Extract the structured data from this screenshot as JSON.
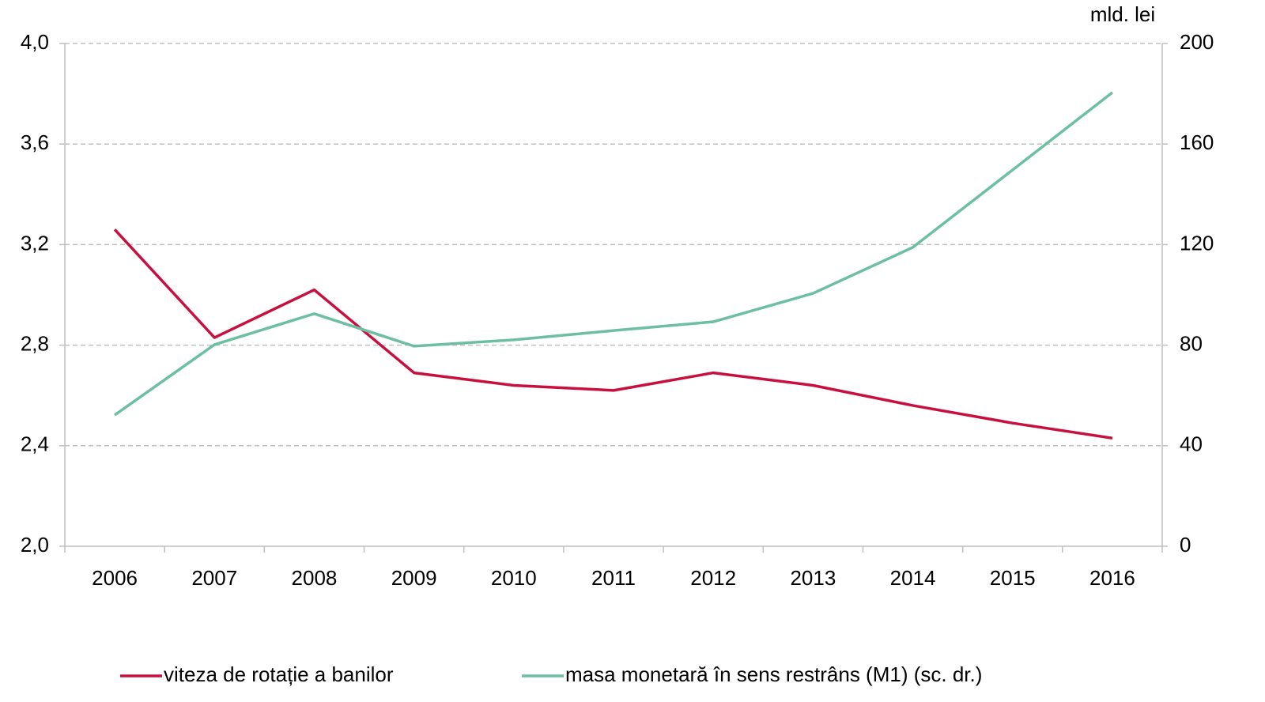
{
  "chart_data": {
    "type": "line",
    "y2label": "mld. lei",
    "categories": [
      "2006",
      "2007",
      "2008",
      "2009",
      "2010",
      "2011",
      "2012",
      "2013",
      "2014",
      "2015",
      "2016"
    ],
    "series": [
      {
        "name": "viteza de rotație a banilor",
        "color": "#c8103e",
        "values": [
          3.26,
          2.83,
          3.02,
          2.69,
          2.64,
          2.62,
          2.69,
          2.64,
          2.56,
          2.49,
          2.43
        ]
      },
      {
        "name": "masa monetară în sens restrâns (M1) (sc. dr.)",
        "color": "#6cbfa0",
        "axis": "y2",
        "values": [
          52.2,
          80.2,
          92.5,
          79.6,
          82.1,
          85.8,
          89.3,
          100.6,
          118.9,
          149.7,
          180.5
        ]
      }
    ],
    "ylim": [
      2.0,
      4.0
    ],
    "yticks": [
      {
        "value": 2.0,
        "label": "2,0"
      },
      {
        "value": 2.4,
        "label": "2,4"
      },
      {
        "value": 2.8,
        "label": "2,8"
      },
      {
        "value": 3.2,
        "label": "3,2"
      },
      {
        "value": 3.6,
        "label": "3,6"
      },
      {
        "value": 4.0,
        "label": "4,0"
      }
    ],
    "y2lim": [
      0,
      200
    ],
    "y2ticks": [
      0,
      40,
      80,
      120,
      160,
      200
    ],
    "grid": true,
    "legend": "bottom"
  }
}
